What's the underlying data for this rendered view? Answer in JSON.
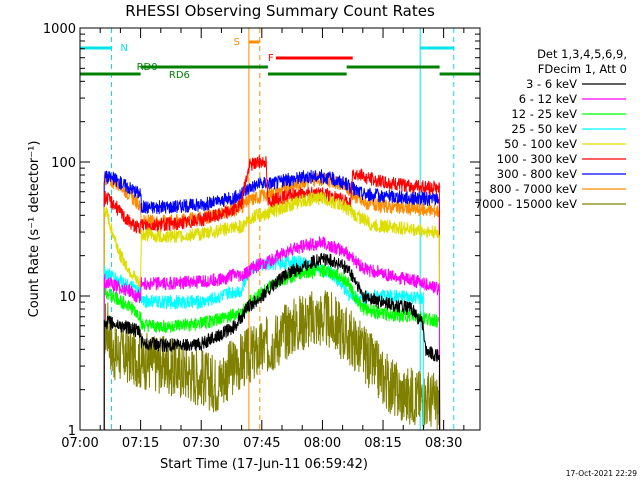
{
  "chart_data": {
    "type": "line",
    "title": "RHESSI Observing Summary Count Rates",
    "xlabel": "Start Time (17-Jun-11 06:59:42)",
    "ylabel": "Count Rate (s⁻¹ detector⁻¹)",
    "yscale": "log",
    "ylim": [
      1,
      1000
    ],
    "xlim": [
      "07:00",
      "08:39"
    ],
    "x_tick_labels": [
      "07:00",
      "07:15",
      "07:30",
      "07:45",
      "08:00",
      "08:15",
      "08:30"
    ],
    "x_ticks_minutes": [
      0,
      15,
      30,
      45,
      60,
      75,
      90
    ],
    "y_tick_labels": [
      "1",
      "10",
      "100",
      "1000"
    ],
    "y_ticks": [
      1,
      10,
      100,
      1000
    ],
    "grid": false,
    "legend_position": "right",
    "legend_header": [
      "Det 1,3,4,5,6,9,",
      "FDecim 1, Att 0"
    ],
    "date_stamp": "17-Oct-2021 22:29",
    "series": [
      {
        "name": "3 - 6 keV",
        "color": "#000000",
        "points": [
          [
            6,
            6.5
          ],
          [
            8,
            6.2
          ],
          [
            12,
            5.8
          ],
          [
            14,
            5.5
          ],
          [
            15,
            5.2
          ],
          [
            15.2,
            4.5
          ],
          [
            20,
            4.3
          ],
          [
            25,
            4.3
          ],
          [
            30,
            4.4
          ],
          [
            35,
            5.2
          ],
          [
            38,
            5.8
          ],
          [
            40,
            7
          ],
          [
            42,
            8.5
          ],
          [
            43,
            9
          ],
          [
            45,
            10
          ],
          [
            48,
            12
          ],
          [
            52,
            15
          ],
          [
            56,
            17
          ],
          [
            60,
            19
          ],
          [
            63,
            18
          ],
          [
            66,
            16
          ],
          [
            68,
            13
          ],
          [
            70,
            10
          ],
          [
            74,
            9
          ],
          [
            78,
            8.5
          ],
          [
            82,
            8
          ],
          [
            85,
            6
          ],
          [
            85.5,
            4
          ],
          [
            88,
            3.6
          ],
          [
            89,
            3.5
          ]
        ]
      },
      {
        "name": "6 - 12 keV",
        "color": "#ff00ff",
        "points": [
          [
            6,
            13
          ],
          [
            8,
            12
          ],
          [
            10,
            11.5
          ],
          [
            12,
            11
          ],
          [
            14,
            10
          ],
          [
            15,
            9.8
          ],
          [
            15.2,
            12.5
          ],
          [
            20,
            12.3
          ],
          [
            25,
            12.5
          ],
          [
            30,
            12.8
          ],
          [
            35,
            13.5
          ],
          [
            38,
            14.2
          ],
          [
            40,
            14
          ],
          [
            42,
            15.5
          ],
          [
            44,
            17
          ],
          [
            46,
            17.5
          ],
          [
            48,
            19
          ],
          [
            52,
            22
          ],
          [
            56,
            24
          ],
          [
            60,
            25
          ],
          [
            63,
            23
          ],
          [
            66,
            21
          ],
          [
            68,
            18.5
          ],
          [
            70,
            16
          ],
          [
            74,
            15
          ],
          [
            78,
            14
          ],
          [
            82,
            13
          ],
          [
            85,
            12.5
          ],
          [
            88,
            11.5
          ],
          [
            89,
            11
          ]
        ]
      },
      {
        "name": "12 - 25 keV",
        "color": "#00ff00",
        "points": [
          [
            6,
            11
          ],
          [
            8,
            10
          ],
          [
            10,
            9.2
          ],
          [
            12,
            8.5
          ],
          [
            14,
            7.5
          ],
          [
            15,
            7
          ],
          [
            15.2,
            6
          ],
          [
            20,
            5.9
          ],
          [
            25,
            6
          ],
          [
            30,
            6.2
          ],
          [
            35,
            6.8
          ],
          [
            38,
            7.2
          ],
          [
            40,
            7.3
          ],
          [
            42,
            9
          ],
          [
            44,
            10
          ],
          [
            46,
            11
          ],
          [
            48,
            12.5
          ],
          [
            52,
            14
          ],
          [
            56,
            15
          ],
          [
            60,
            15.5
          ],
          [
            63,
            14.5
          ],
          [
            66,
            13
          ],
          [
            68,
            10
          ],
          [
            70,
            8
          ],
          [
            74,
            7.5
          ],
          [
            78,
            7.2
          ],
          [
            82,
            7
          ],
          [
            85,
            6.8
          ],
          [
            88,
            6.5
          ],
          [
            89,
            6.4
          ]
        ]
      },
      {
        "name": "25 - 50 keV",
        "color": "#00ffff",
        "points": [
          [
            6,
            15
          ],
          [
            8,
            14
          ],
          [
            10,
            13
          ],
          [
            12,
            12
          ],
          [
            14,
            11
          ],
          [
            15,
            10.5
          ],
          [
            15.2,
            9.2
          ],
          [
            20,
            9
          ],
          [
            25,
            9
          ],
          [
            30,
            9
          ],
          [
            35,
            10
          ],
          [
            38,
            10.8
          ],
          [
            40,
            11
          ],
          [
            42,
            16
          ],
          [
            44,
            17
          ],
          [
            46,
            17.3
          ],
          [
            48,
            17.5
          ],
          [
            52,
            18
          ],
          [
            56,
            17.5
          ],
          [
            60,
            15.5
          ],
          [
            62,
            15
          ],
          [
            64,
            13
          ],
          [
            66,
            10.5
          ],
          [
            68,
            9.8
          ],
          [
            70,
            9.5
          ],
          [
            72,
            10
          ],
          [
            76,
            10
          ],
          [
            80,
            9.8
          ],
          [
            84,
            9.5
          ],
          [
            85,
            9.5
          ]
        ]
      },
      {
        "name": "50 - 100 keV",
        "color": "#dddd00",
        "points": [
          [
            6,
            45
          ],
          [
            8,
            30
          ],
          [
            10,
            20
          ],
          [
            12,
            16
          ],
          [
            14,
            13
          ],
          [
            15,
            12
          ],
          [
            15.2,
            29
          ],
          [
            20,
            28
          ],
          [
            25,
            28
          ],
          [
            30,
            29
          ],
          [
            35,
            31
          ],
          [
            38,
            32
          ],
          [
            40,
            33
          ],
          [
            42,
            38
          ],
          [
            44,
            40
          ],
          [
            46,
            41
          ],
          [
            48,
            43
          ],
          [
            52,
            48
          ],
          [
            56,
            52
          ],
          [
            60,
            54
          ],
          [
            63,
            50
          ],
          [
            66,
            45
          ],
          [
            68,
            40
          ],
          [
            70,
            38
          ],
          [
            72,
            34
          ],
          [
            76,
            33
          ],
          [
            80,
            32
          ],
          [
            84,
            31
          ],
          [
            88,
            30
          ],
          [
            89,
            29
          ]
        ]
      },
      {
        "name": "100 - 300 keV",
        "color": "#ff0000",
        "points": [
          [
            6,
            55
          ],
          [
            8,
            50
          ],
          [
            10,
            42
          ],
          [
            12,
            36
          ],
          [
            14,
            33
          ],
          [
            15,
            32
          ],
          [
            15.2,
            34
          ],
          [
            20,
            34
          ],
          [
            25,
            35
          ],
          [
            30,
            37
          ],
          [
            35,
            41
          ],
          [
            38,
            44
          ],
          [
            40,
            48
          ],
          [
            42,
            95
          ],
          [
            44,
            100
          ],
          [
            46,
            102
          ],
          [
            46.5,
            50
          ],
          [
            48,
            52
          ],
          [
            52,
            56
          ],
          [
            56,
            58
          ],
          [
            60,
            58
          ],
          [
            63,
            55
          ],
          [
            66,
            50
          ],
          [
            67,
            48
          ],
          [
            67.5,
            85
          ],
          [
            70,
            78
          ],
          [
            74,
            72
          ],
          [
            78,
            68
          ],
          [
            82,
            66
          ],
          [
            86,
            65
          ],
          [
            89,
            64
          ]
        ]
      },
      {
        "name": "300 - 800 keV",
        "color": "#0000ff",
        "points": [
          [
            6,
            78
          ],
          [
            8,
            76
          ],
          [
            10,
            70
          ],
          [
            12,
            65
          ],
          [
            14,
            60
          ],
          [
            15,
            58
          ],
          [
            15.2,
            46
          ],
          [
            20,
            46
          ],
          [
            25,
            47
          ],
          [
            30,
            48
          ],
          [
            35,
            51
          ],
          [
            38,
            54
          ],
          [
            40,
            57
          ],
          [
            42,
            65
          ],
          [
            44,
            68
          ],
          [
            46,
            70
          ],
          [
            48,
            70
          ],
          [
            52,
            74
          ],
          [
            56,
            78
          ],
          [
            60,
            78
          ],
          [
            63,
            74
          ],
          [
            66,
            68
          ],
          [
            68,
            62
          ],
          [
            70,
            58
          ],
          [
            74,
            56
          ],
          [
            78,
            55
          ],
          [
            82,
            54
          ],
          [
            86,
            53
          ],
          [
            89,
            53
          ]
        ]
      },
      {
        "name": "800 - 7000 keV",
        "color": "#ff8c00",
        "points": [
          [
            6,
            75
          ],
          [
            8,
            72
          ],
          [
            10,
            66
          ],
          [
            12,
            58
          ],
          [
            14,
            50
          ],
          [
            15,
            46
          ],
          [
            15.2,
            36
          ],
          [
            20,
            36
          ],
          [
            25,
            37
          ],
          [
            30,
            38
          ],
          [
            35,
            41
          ],
          [
            38,
            44
          ],
          [
            40,
            46
          ],
          [
            42,
            52
          ],
          [
            44,
            55
          ],
          [
            46,
            57
          ],
          [
            48,
            59
          ],
          [
            52,
            66
          ],
          [
            56,
            72
          ],
          [
            60,
            75
          ],
          [
            63,
            71
          ],
          [
            66,
            64
          ],
          [
            68,
            56
          ],
          [
            70,
            50
          ],
          [
            74,
            47
          ],
          [
            78,
            46
          ],
          [
            82,
            45
          ],
          [
            86,
            44
          ],
          [
            89,
            43
          ]
        ]
      },
      {
        "name": "7000 - 15000 keV",
        "color": "#808000",
        "points": [
          [
            6,
            5.8
          ],
          [
            7,
            5.7
          ],
          [
            8,
            3.8
          ],
          [
            12,
            3.6
          ],
          [
            14,
            3.5
          ],
          [
            15,
            3.3
          ],
          [
            18,
            3.2
          ],
          [
            22,
            3
          ],
          [
            25,
            2.8
          ],
          [
            28,
            2.6
          ],
          [
            30,
            2.5
          ],
          [
            32,
            2.3
          ],
          [
            34,
            2.2
          ],
          [
            36,
            2.6
          ],
          [
            38,
            3
          ],
          [
            40,
            3.3
          ],
          [
            42,
            3.6
          ],
          [
            44,
            3.8
          ],
          [
            46,
            4.2
          ],
          [
            48,
            4.6
          ],
          [
            52,
            5.8
          ],
          [
            56,
            6.6
          ],
          [
            60,
            6.8
          ],
          [
            62,
            6.5
          ],
          [
            64,
            5.8
          ],
          [
            66,
            5.1
          ],
          [
            68,
            4.5
          ],
          [
            70,
            3.8
          ],
          [
            72,
            3.2
          ],
          [
            74,
            2.7
          ],
          [
            76,
            2.3
          ],
          [
            78,
            2
          ],
          [
            80,
            1.8
          ],
          [
            83,
            1.8
          ],
          [
            86,
            1.7
          ],
          [
            89,
            1.6
          ]
        ]
      }
    ],
    "annotations": {
      "night_label": "N",
      "saa_label": "S",
      "flare_label": "F",
      "rd0_label": "RD0",
      "rd6_label": "RD6",
      "night_intervals": [
        [
          0,
          7.8
        ],
        [
          84.2,
          92.5
        ]
      ],
      "saa_intervals": [
        [
          41.8,
          44.5
        ]
      ],
      "flare_intervals": [
        [
          48.5,
          67.5
        ]
      ],
      "rd0_intervals": [
        [
          15,
          46.5
        ],
        [
          66,
          89
        ]
      ],
      "rd6_intervals": [
        [
          0,
          15
        ],
        [
          46.5,
          66
        ],
        [
          89,
          99
        ]
      ],
      "night_event_lines": [
        0,
        7.8,
        84.2,
        92.5
      ],
      "saa_event_lines": [
        41.8,
        44.5
      ]
    }
  }
}
